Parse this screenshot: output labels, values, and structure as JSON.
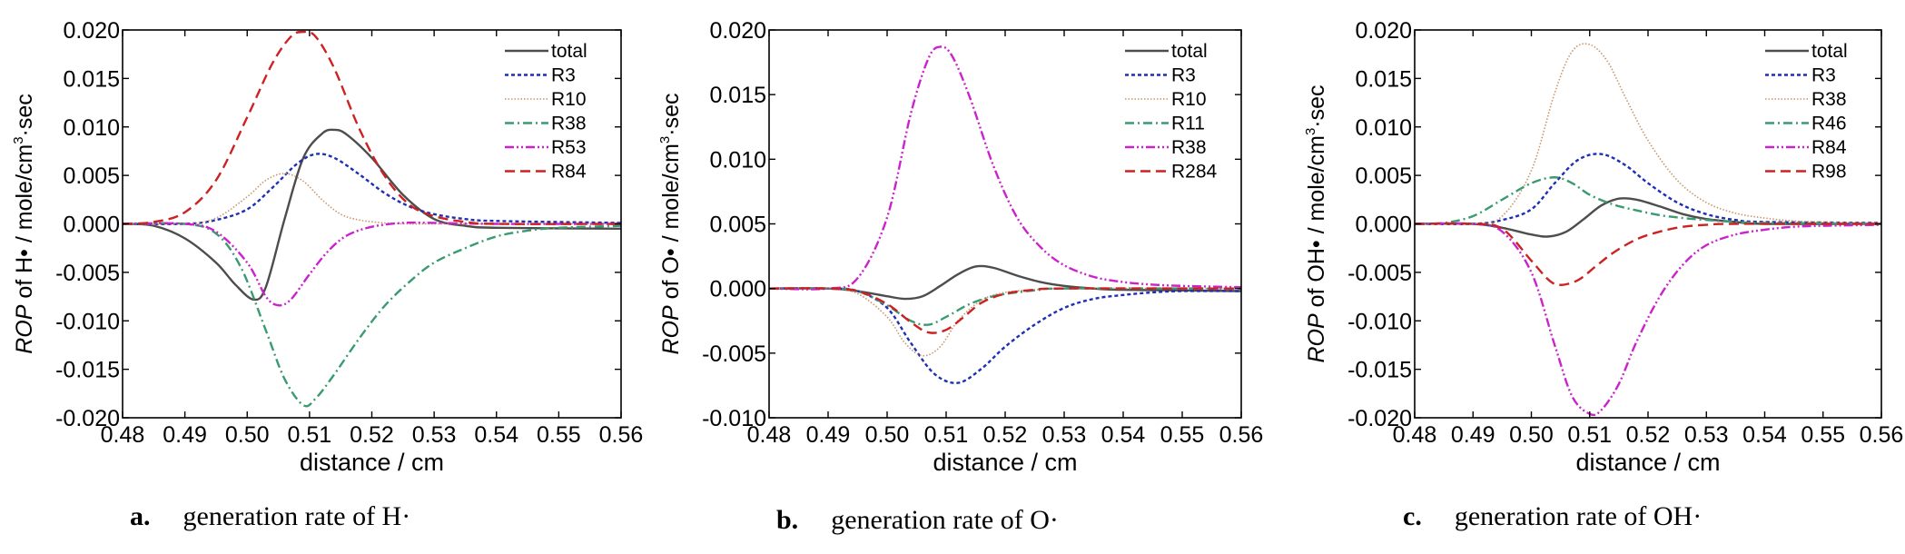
{
  "chart_data": [
    {
      "type": "line",
      "caption_letter": "a.",
      "caption_text": "generation rate of H·",
      "xlabel": "distance / cm",
      "ylabel_italic": "ROP",
      "ylabel_rest": " of H• / mole/cm",
      "ylabel_sup": "3",
      "ylabel_tail": "·sec",
      "xlim": [
        0.48,
        0.56
      ],
      "ylim": [
        -0.02,
        0.02
      ],
      "xticks": [
        "0.48",
        "0.49",
        "0.50",
        "0.51",
        "0.52",
        "0.53",
        "0.54",
        "0.55",
        "0.56"
      ],
      "yticks": [
        "0.020",
        "0.015",
        "0.010",
        "0.005",
        "0.000",
        "-0.005",
        "-0.010",
        "-0.015",
        "-0.020"
      ],
      "legend_position": "top-right",
      "series": [
        {
          "name": "total",
          "color": "#4d4d4d",
          "dash": "solid",
          "x": [
            0.48,
            0.485,
            0.49,
            0.495,
            0.498,
            0.501,
            0.503,
            0.506,
            0.509,
            0.512,
            0.514,
            0.516,
            0.52,
            0.525,
            0.53,
            0.535,
            0.54,
            0.56
          ],
          "y": [
            0.0,
            -0.0002,
            -0.0015,
            -0.004,
            -0.0062,
            -0.0078,
            -0.0065,
            0.0005,
            0.0068,
            0.0093,
            0.0097,
            0.0092,
            0.0068,
            0.003,
            0.0005,
            -0.0002,
            -0.0004,
            -0.0005
          ]
        },
        {
          "name": "R3",
          "color": "#1f2fb3",
          "dash": "dot",
          "x": [
            0.48,
            0.49,
            0.495,
            0.5,
            0.504,
            0.508,
            0.511,
            0.514,
            0.518,
            0.522,
            0.526,
            0.53,
            0.535,
            0.54,
            0.56
          ],
          "y": [
            0.0,
            0.0,
            0.0004,
            0.0015,
            0.0037,
            0.0062,
            0.0072,
            0.0068,
            0.0051,
            0.0032,
            0.0018,
            0.001,
            0.0005,
            0.0003,
            0.0001
          ]
        },
        {
          "name": "R10",
          "color": "#c8956b",
          "dash": "finedot",
          "x": [
            0.48,
            0.49,
            0.495,
            0.5,
            0.503,
            0.506,
            0.509,
            0.512,
            0.515,
            0.518,
            0.522,
            0.526,
            0.53,
            0.56
          ],
          "y": [
            0.0,
            0.0,
            0.0006,
            0.0028,
            0.0045,
            0.0052,
            0.0044,
            0.0025,
            0.001,
            0.0004,
            0.0001,
            0.0,
            0.0,
            0.0
          ]
        },
        {
          "name": "R38",
          "color": "#3a9a70",
          "dash": "dashdot",
          "x": [
            0.48,
            0.49,
            0.495,
            0.499,
            0.503,
            0.506,
            0.509,
            0.511,
            0.514,
            0.518,
            0.522,
            0.526,
            0.53,
            0.535,
            0.54,
            0.545,
            0.55,
            0.56
          ],
          "y": [
            0.0,
            0.0,
            -0.001,
            -0.0045,
            -0.011,
            -0.016,
            -0.0187,
            -0.018,
            -0.0155,
            -0.0118,
            -0.0085,
            -0.006,
            -0.004,
            -0.0025,
            -0.0013,
            -0.0007,
            -0.0004,
            -0.0002
          ]
        },
        {
          "name": "R53",
          "color": "#cc22cc",
          "dash": "dashdotdot",
          "x": [
            0.48,
            0.49,
            0.495,
            0.5,
            0.503,
            0.505,
            0.507,
            0.51,
            0.513,
            0.516,
            0.52,
            0.525,
            0.53,
            0.54,
            0.56
          ],
          "y": [
            0.0,
            0.0,
            -0.0008,
            -0.004,
            -0.0075,
            -0.0084,
            -0.0078,
            -0.0052,
            -0.0028,
            -0.0012,
            -0.0003,
            0.0001,
            0.0001,
            0.0,
            0.0
          ]
        },
        {
          "name": "R84",
          "color": "#cc2222",
          "dash": "dash",
          "x": [
            0.48,
            0.485,
            0.49,
            0.495,
            0.5,
            0.504,
            0.507,
            0.509,
            0.511,
            0.514,
            0.518,
            0.522,
            0.526,
            0.53,
            0.535,
            0.54,
            0.56
          ],
          "y": [
            0.0,
            0.0002,
            0.0012,
            0.0045,
            0.011,
            0.0165,
            0.0193,
            0.0198,
            0.0193,
            0.016,
            0.0098,
            0.005,
            0.002,
            0.0008,
            0.0002,
            0.0,
            0.0
          ]
        }
      ]
    },
    {
      "type": "line",
      "caption_letter": "b.",
      "caption_text": "generation rate of O·",
      "xlabel": "distance / cm",
      "ylabel_italic": "ROP",
      "ylabel_rest": " of O• / mole/cm",
      "ylabel_sup": "3",
      "ylabel_tail": "·sec",
      "xlim": [
        0.48,
        0.56
      ],
      "ylim": [
        -0.01,
        0.02
      ],
      "xticks": [
        "0.48",
        "0.49",
        "0.50",
        "0.51",
        "0.52",
        "0.53",
        "0.54",
        "0.55",
        "0.56"
      ],
      "yticks": [
        "0.020",
        "0.015",
        "0.010",
        "0.005",
        "0.000",
        "-0.005",
        "-0.010"
      ],
      "legend_position": "top-right",
      "series": [
        {
          "name": "total",
          "color": "#4d4d4d",
          "dash": "solid",
          "x": [
            0.48,
            0.49,
            0.495,
            0.5,
            0.503,
            0.506,
            0.509,
            0.512,
            0.515,
            0.518,
            0.522,
            0.526,
            0.53,
            0.535,
            0.54,
            0.56
          ],
          "y": [
            0.0,
            0.0,
            -0.0002,
            -0.0006,
            -0.0008,
            -0.0006,
            0.0002,
            0.0011,
            0.0017,
            0.0016,
            0.001,
            0.0005,
            0.0002,
            0.0,
            -0.0001,
            -0.0002
          ]
        },
        {
          "name": "R3",
          "color": "#1f2fb3",
          "dash": "dot",
          "x": [
            0.48,
            0.49,
            0.495,
            0.5,
            0.504,
            0.508,
            0.512,
            0.516,
            0.52,
            0.525,
            0.53,
            0.535,
            0.54,
            0.545,
            0.55,
            0.56
          ],
          "y": [
            0.0,
            0.0,
            -0.0002,
            -0.0015,
            -0.0042,
            -0.0066,
            -0.0073,
            -0.0062,
            -0.0045,
            -0.0028,
            -0.0015,
            -0.0008,
            -0.0005,
            -0.0003,
            -0.0002,
            -0.0002
          ]
        },
        {
          "name": "R10",
          "color": "#c8956b",
          "dash": "finedot",
          "x": [
            0.48,
            0.49,
            0.495,
            0.5,
            0.503,
            0.506,
            0.509,
            0.512,
            0.516,
            0.52,
            0.525,
            0.53,
            0.56
          ],
          "y": [
            0.0,
            0.0,
            -0.0004,
            -0.0022,
            -0.0042,
            -0.0052,
            -0.0045,
            -0.0025,
            -0.0009,
            -0.0003,
            -0.0001,
            0.0,
            0.0
          ]
        },
        {
          "name": "R11",
          "color": "#3a9a70",
          "dash": "dashdot",
          "x": [
            0.48,
            0.49,
            0.495,
            0.5,
            0.504,
            0.507,
            0.51,
            0.514,
            0.518,
            0.522,
            0.526,
            0.53,
            0.56
          ],
          "y": [
            0.0,
            0.0,
            -0.0002,
            -0.0013,
            -0.0025,
            -0.0028,
            -0.0022,
            -0.0012,
            -0.0006,
            -0.0003,
            -0.0001,
            0.0,
            0.0
          ]
        },
        {
          "name": "R38",
          "color": "#cc22cc",
          "dash": "dashdotdot",
          "x": [
            0.48,
            0.49,
            0.495,
            0.5,
            0.504,
            0.507,
            0.509,
            0.511,
            0.514,
            0.518,
            0.522,
            0.526,
            0.53,
            0.535,
            0.54,
            0.545,
            0.55,
            0.56
          ],
          "y": [
            0.0,
            0.0,
            0.0008,
            0.0055,
            0.0135,
            0.0178,
            0.0187,
            0.018,
            0.0148,
            0.0095,
            0.0055,
            0.0032,
            0.0018,
            0.0009,
            0.0005,
            0.0003,
            0.0002,
            0.0001
          ]
        },
        {
          "name": "R284",
          "color": "#cc2222",
          "dash": "dash",
          "x": [
            0.48,
            0.49,
            0.495,
            0.5,
            0.504,
            0.507,
            0.51,
            0.513,
            0.516,
            0.52,
            0.525,
            0.53,
            0.56
          ],
          "y": [
            0.0,
            0.0,
            -0.0002,
            -0.0012,
            -0.0026,
            -0.0034,
            -0.0032,
            -0.0022,
            -0.0011,
            -0.0004,
            -0.0001,
            0.0,
            0.0
          ]
        }
      ]
    },
    {
      "type": "line",
      "caption_letter": "c.",
      "caption_text": "generation rate of OH·",
      "xlabel": "distance / cm",
      "ylabel_italic": "ROP",
      "ylabel_rest": " of OH• / mole/cm",
      "ylabel_sup": "3",
      "ylabel_tail": "·sec",
      "xlim": [
        0.48,
        0.56
      ],
      "ylim": [
        -0.02,
        0.02
      ],
      "xticks": [
        "0.48",
        "0.49",
        "0.50",
        "0.51",
        "0.52",
        "0.53",
        "0.54",
        "0.55",
        "0.56"
      ],
      "yticks": [
        "0.020",
        "0.015",
        "0.010",
        "0.005",
        "0.000",
        "-0.005",
        "-0.010",
        "-0.015",
        "-0.020"
      ],
      "legend_position": "top-right",
      "series": [
        {
          "name": "total",
          "color": "#4d4d4d",
          "dash": "solid",
          "x": [
            0.48,
            0.49,
            0.495,
            0.5,
            0.503,
            0.506,
            0.509,
            0.512,
            0.515,
            0.518,
            0.522,
            0.526,
            0.53,
            0.535,
            0.54,
            0.56
          ],
          "y": [
            0.0,
            0.0,
            -0.0004,
            -0.0011,
            -0.0013,
            -0.0008,
            0.0005,
            0.0019,
            0.0026,
            0.0025,
            0.0018,
            0.001,
            0.0005,
            0.0002,
            0.0,
            0.0
          ]
        },
        {
          "name": "R3",
          "color": "#1f2fb3",
          "dash": "dot",
          "x": [
            0.48,
            0.49,
            0.495,
            0.5,
            0.504,
            0.508,
            0.512,
            0.516,
            0.52,
            0.525,
            0.53,
            0.535,
            0.54,
            0.56
          ],
          "y": [
            0.0,
            0.0,
            0.0004,
            0.0015,
            0.0042,
            0.0066,
            0.0072,
            0.0061,
            0.0042,
            0.0022,
            0.001,
            0.0004,
            0.0002,
            0.0001
          ]
        },
        {
          "name": "R38",
          "color": "#c8956b",
          "dash": "finedot",
          "x": [
            0.48,
            0.49,
            0.495,
            0.5,
            0.504,
            0.507,
            0.51,
            0.513,
            0.516,
            0.52,
            0.525,
            0.53,
            0.535,
            0.54,
            0.545,
            0.55,
            0.56
          ],
          "y": [
            0.0,
            0.0,
            0.0008,
            0.0055,
            0.0135,
            0.0178,
            0.0185,
            0.0168,
            0.0132,
            0.0086,
            0.0045,
            0.0022,
            0.0011,
            0.0006,
            0.0003,
            0.0002,
            0.0001
          ]
        },
        {
          "name": "R46",
          "color": "#3a9a70",
          "dash": "dashdot",
          "x": [
            0.48,
            0.485,
            0.49,
            0.495,
            0.5,
            0.504,
            0.507,
            0.51,
            0.514,
            0.518,
            0.522,
            0.526,
            0.53,
            0.535,
            0.54,
            0.56
          ],
          "y": [
            0.0,
            0.0001,
            0.0008,
            0.0025,
            0.0042,
            0.0048,
            0.0042,
            0.003,
            0.002,
            0.0014,
            0.0009,
            0.0006,
            0.0004,
            0.0002,
            0.0001,
            0.0
          ]
        },
        {
          "name": "R84",
          "color": "#cc22cc",
          "dash": "dashdotdot",
          "x": [
            0.48,
            0.49,
            0.495,
            0.5,
            0.504,
            0.507,
            0.51,
            0.512,
            0.515,
            0.518,
            0.522,
            0.526,
            0.53,
            0.535,
            0.54,
            0.545,
            0.55,
            0.56
          ],
          "y": [
            0.0,
            0.0,
            -0.0008,
            -0.005,
            -0.0125,
            -0.0178,
            -0.0196,
            -0.0192,
            -0.0165,
            -0.0122,
            -0.0075,
            -0.0042,
            -0.0022,
            -0.0011,
            -0.0006,
            -0.0003,
            -0.0002,
            -0.0001
          ]
        },
        {
          "name": "R98",
          "color": "#cc2222",
          "dash": "dash",
          "x": [
            0.48,
            0.49,
            0.495,
            0.5,
            0.503,
            0.505,
            0.508,
            0.511,
            0.514,
            0.518,
            0.522,
            0.526,
            0.53,
            0.535,
            0.56
          ],
          "y": [
            0.0,
            0.0,
            -0.0005,
            -0.0038,
            -0.0058,
            -0.0063,
            -0.0058,
            -0.0044,
            -0.003,
            -0.0016,
            -0.0008,
            -0.0003,
            -0.0001,
            0.0,
            0.0
          ]
        }
      ]
    }
  ]
}
